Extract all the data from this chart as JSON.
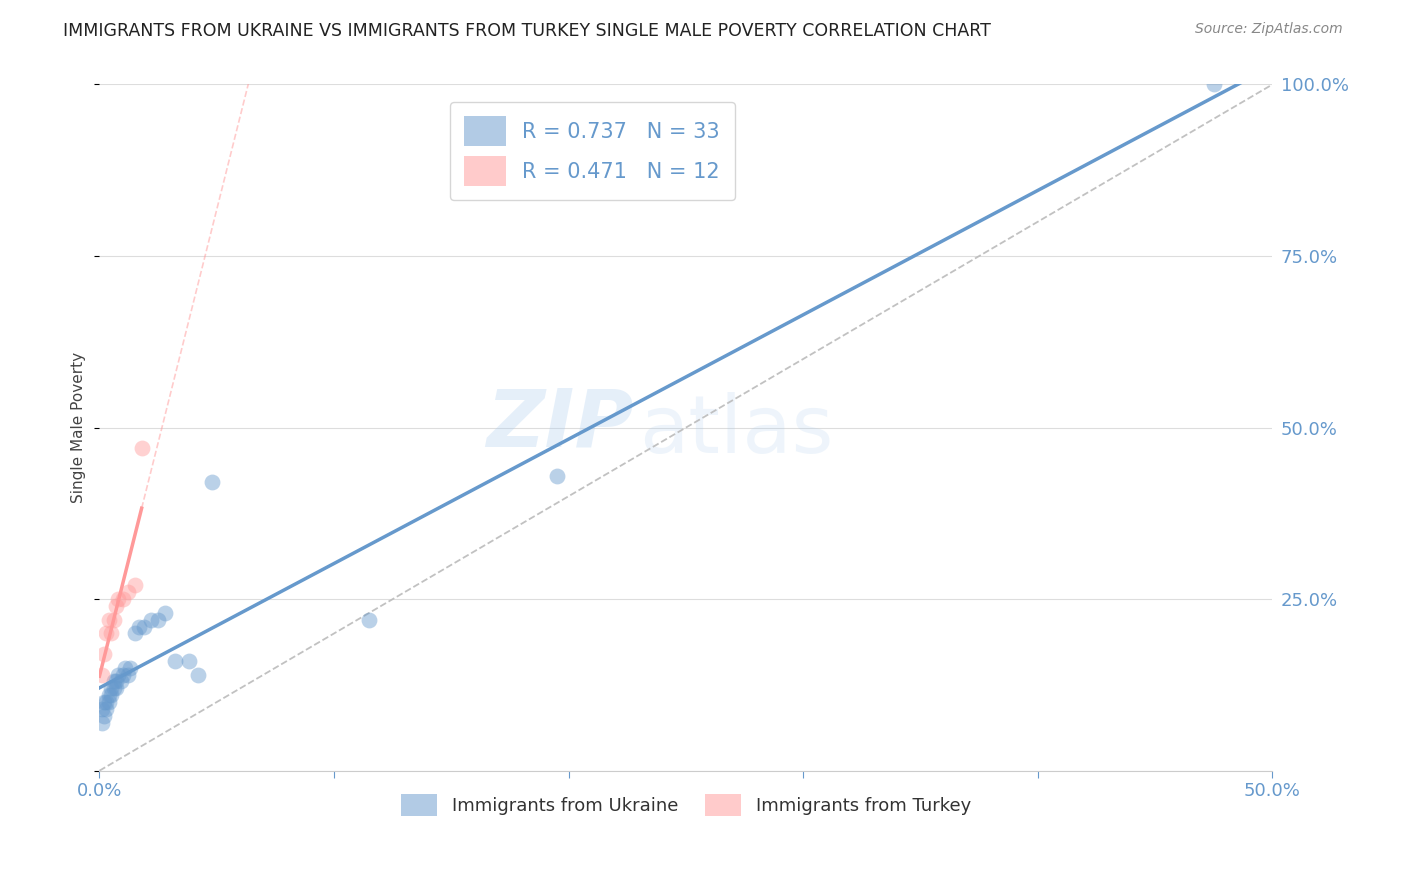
{
  "title": "IMMIGRANTS FROM UKRAINE VS IMMIGRANTS FROM TURKEY SINGLE MALE POVERTY CORRELATION CHART",
  "source": "Source: ZipAtlas.com",
  "ylabel": "Single Male Poverty",
  "xlim": [
    0.0,
    0.5
  ],
  "ylim": [
    0.0,
    1.0
  ],
  "ukraine_color": "#6699CC",
  "turkey_color": "#FF9999",
  "ukraine_R": 0.737,
  "ukraine_N": 33,
  "turkey_R": 0.471,
  "turkey_N": 12,
  "ukraine_x": [
    0.001,
    0.001,
    0.002,
    0.002,
    0.003,
    0.003,
    0.004,
    0.004,
    0.005,
    0.005,
    0.006,
    0.006,
    0.007,
    0.007,
    0.008,
    0.009,
    0.01,
    0.011,
    0.012,
    0.013,
    0.015,
    0.017,
    0.019,
    0.022,
    0.025,
    0.028,
    0.032,
    0.038,
    0.042,
    0.048,
    0.115,
    0.195,
    0.475
  ],
  "ukraine_y": [
    0.07,
    0.09,
    0.08,
    0.1,
    0.1,
    0.09,
    0.11,
    0.1,
    0.11,
    0.12,
    0.12,
    0.13,
    0.13,
    0.12,
    0.14,
    0.13,
    0.14,
    0.15,
    0.14,
    0.15,
    0.2,
    0.21,
    0.21,
    0.22,
    0.22,
    0.23,
    0.16,
    0.16,
    0.14,
    0.42,
    0.22,
    0.43,
    1.0
  ],
  "turkey_x": [
    0.001,
    0.002,
    0.003,
    0.004,
    0.005,
    0.006,
    0.007,
    0.008,
    0.01,
    0.012,
    0.015,
    0.018
  ],
  "turkey_y": [
    0.14,
    0.17,
    0.2,
    0.22,
    0.2,
    0.22,
    0.24,
    0.25,
    0.25,
    0.26,
    0.27,
    0.47
  ],
  "watermark_zip": "ZIP",
  "watermark_atlas": "atlas",
  "background_color": "#ffffff",
  "grid_color": "#dddddd",
  "tick_color": "#6699CC",
  "legend_border_color": "#cccccc",
  "scatter_size": 130,
  "scatter_alpha": 0.45,
  "regline_lw": 2.5
}
